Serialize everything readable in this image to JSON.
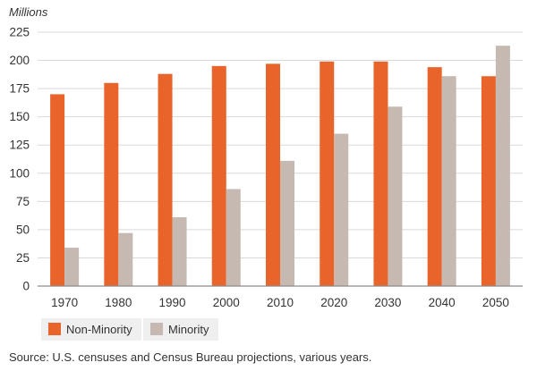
{
  "unit_label": "Millions",
  "source_note": "Source: U.S. censuses and Census Bureau projections, various years.",
  "colors": {
    "non_minority": "#E8642A",
    "minority": "#C5B9B1",
    "grid": "#D9D9D9",
    "axis": "#8C8C8C",
    "legend_box": "#EFEFEF"
  },
  "chart_data": {
    "type": "bar",
    "title": "",
    "xlabel": "",
    "ylabel": "Millions",
    "categories": [
      "1970",
      "1980",
      "1990",
      "2000",
      "2010",
      "2020",
      "2030",
      "2040",
      "2050"
    ],
    "series": [
      {
        "name": "Non-Minority",
        "values": [
          170,
          180,
          188,
          195,
          197,
          199,
          199,
          194,
          186
        ]
      },
      {
        "name": "Minority",
        "values": [
          34,
          47,
          61,
          86,
          111,
          135,
          159,
          186,
          213
        ]
      }
    ],
    "ylim": [
      0,
      225
    ],
    "yticks": [
      0,
      25,
      50,
      75,
      100,
      125,
      150,
      175,
      200,
      225
    ],
    "grid": true,
    "legend_position": "bottom-left"
  }
}
